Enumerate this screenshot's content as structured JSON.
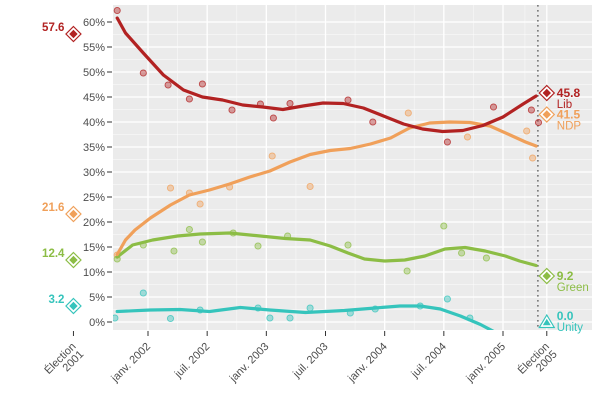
{
  "chart_data": {
    "type": "scatter",
    "subtype": "poll-tracker with smoothed trend lines",
    "title": "",
    "xlabel": "",
    "ylabel": "",
    "y_axis": {
      "min": 0,
      "max": 60,
      "step": 5,
      "unit": "%",
      "tick_labels": [
        "0%",
        "5%",
        "10%",
        "15%",
        "20%",
        "25%",
        "30%",
        "35%",
        "40%",
        "45%",
        "50%",
        "55%",
        "60%"
      ]
    },
    "x_ticks": [
      {
        "t": 2001.37,
        "label": "Élection\n2001"
      },
      {
        "t": 2002.0,
        "label": "janv. 2002"
      },
      {
        "t": 2002.5,
        "label": "juil. 2002"
      },
      {
        "t": 2003.0,
        "label": "janv. 2003"
      },
      {
        "t": 2003.5,
        "label": "juil. 2003"
      },
      {
        "t": 2004.0,
        "label": "janv. 2004"
      },
      {
        "t": 2004.5,
        "label": "juil. 2004"
      },
      {
        "t": 2005.0,
        "label": "janv. 2005"
      },
      {
        "t": 2005.37,
        "label": "Élection\n2005"
      }
    ],
    "dotted_line_t": 2005.295,
    "election_2001_t": 2001.37,
    "election_2005_t": 2005.37,
    "panel_bg": "#EBEBEB",
    "grid_color": "#FFFFFF",
    "axis_text_color": "#4D4D4D",
    "dotted_line_color": "#595959",
    "series": [
      {
        "name": "Lib",
        "color": "#B22222",
        "e2001": {
          "value": 57.6,
          "label": "57.6"
        },
        "e2005": {
          "value": 45.8,
          "label": "45.8"
        },
        "marker_2005": "diamond",
        "polls": [
          [
            2001.74,
            62.3
          ],
          [
            2001.96,
            49.8
          ],
          [
            2002.17,
            47.4
          ],
          [
            2002.35,
            44.6
          ],
          [
            2002.46,
            47.6
          ],
          [
            2002.71,
            42.4
          ],
          [
            2002.95,
            43.6
          ],
          [
            2003.06,
            40.8
          ],
          [
            2003.2,
            43.7
          ],
          [
            2003.69,
            44.4
          ],
          [
            2003.9,
            40.0
          ],
          [
            2004.53,
            36.0
          ],
          [
            2004.92,
            43.0
          ],
          [
            2005.24,
            42.4
          ],
          [
            2005.3,
            39.9
          ]
        ],
        "trend": [
          [
            2001.74,
            60.8
          ],
          [
            2001.81,
            57.8
          ],
          [
            2001.96,
            53.8
          ],
          [
            2002.13,
            49.4
          ],
          [
            2002.3,
            46.4
          ],
          [
            2002.46,
            45.0
          ],
          [
            2002.63,
            44.4
          ],
          [
            2002.8,
            43.4
          ],
          [
            2002.97,
            43.0
          ],
          [
            2003.14,
            42.5
          ],
          [
            2003.31,
            43.2
          ],
          [
            2003.48,
            43.8
          ],
          [
            2003.65,
            43.7
          ],
          [
            2003.82,
            42.8
          ],
          [
            2003.99,
            41.2
          ],
          [
            2004.16,
            39.6
          ],
          [
            2004.32,
            38.6
          ],
          [
            2004.49,
            38.1
          ],
          [
            2004.66,
            38.3
          ],
          [
            2004.83,
            39.3
          ],
          [
            2005.0,
            41.0
          ],
          [
            2005.17,
            43.6
          ],
          [
            2005.28,
            45.2
          ]
        ]
      },
      {
        "name": "NDP",
        "color": "#F0A05A",
        "e2001": {
          "value": 21.6,
          "label": "21.6"
        },
        "e2005": {
          "value": 41.5,
          "label": "41.5"
        },
        "marker_2005": "diamond",
        "polls": [
          [
            2001.74,
            13.4
          ],
          [
            2002.19,
            26.8
          ],
          [
            2002.35,
            25.8
          ],
          [
            2002.44,
            23.6
          ],
          [
            2002.69,
            27.0
          ],
          [
            2003.05,
            33.2
          ],
          [
            2003.37,
            27.1
          ],
          [
            2004.2,
            41.8
          ],
          [
            2004.7,
            37.0
          ],
          [
            2005.2,
            38.2
          ],
          [
            2005.25,
            32.8
          ]
        ],
        "trend": [
          [
            2001.74,
            13.5
          ],
          [
            2001.81,
            16.4
          ],
          [
            2001.89,
            18.4
          ],
          [
            2002.02,
            20.8
          ],
          [
            2002.19,
            23.4
          ],
          [
            2002.35,
            25.4
          ],
          [
            2002.52,
            26.4
          ],
          [
            2002.69,
            27.6
          ],
          [
            2002.86,
            29.0
          ],
          [
            2003.03,
            30.2
          ],
          [
            2003.2,
            32.0
          ],
          [
            2003.37,
            33.5
          ],
          [
            2003.54,
            34.3
          ],
          [
            2003.71,
            34.7
          ],
          [
            2003.88,
            35.6
          ],
          [
            2004.05,
            36.8
          ],
          [
            2004.21,
            38.8
          ],
          [
            2004.38,
            39.8
          ],
          [
            2004.55,
            40.0
          ],
          [
            2004.72,
            39.9
          ],
          [
            2004.89,
            39.2
          ],
          [
            2005.06,
            37.4
          ],
          [
            2005.19,
            36.0
          ],
          [
            2005.28,
            35.2
          ]
        ]
      },
      {
        "name": "Green",
        "color": "#8CBD45",
        "e2001": {
          "value": 12.4,
          "label": "12.4"
        },
        "e2005": {
          "value": 9.2,
          "label": "9.2"
        },
        "marker_2005": "diamond",
        "polls": [
          [
            2001.74,
            12.6
          ],
          [
            2001.96,
            15.4
          ],
          [
            2002.22,
            14.2
          ],
          [
            2002.35,
            18.5
          ],
          [
            2002.46,
            16.0
          ],
          [
            2002.72,
            17.8
          ],
          [
            2002.93,
            15.2
          ],
          [
            2003.18,
            17.2
          ],
          [
            2003.69,
            15.4
          ],
          [
            2004.19,
            10.2
          ],
          [
            2004.5,
            19.2
          ],
          [
            2004.65,
            13.8
          ],
          [
            2004.86,
            12.8
          ]
        ],
        "trend": [
          [
            2001.74,
            13.0
          ],
          [
            2001.87,
            15.4
          ],
          [
            2002.04,
            16.4
          ],
          [
            2002.25,
            17.2
          ],
          [
            2002.44,
            17.6
          ],
          [
            2002.69,
            17.8
          ],
          [
            2002.95,
            17.2
          ],
          [
            2003.16,
            16.7
          ],
          [
            2003.37,
            16.4
          ],
          [
            2003.54,
            15.2
          ],
          [
            2003.69,
            13.8
          ],
          [
            2003.83,
            12.6
          ],
          [
            2004.0,
            12.2
          ],
          [
            2004.17,
            12.4
          ],
          [
            2004.34,
            13.2
          ],
          [
            2004.51,
            14.6
          ],
          [
            2004.68,
            14.9
          ],
          [
            2004.85,
            14.2
          ],
          [
            2005.02,
            13.2
          ],
          [
            2005.14,
            12.2
          ],
          [
            2005.28,
            11.3
          ]
        ]
      },
      {
        "name": "Unity",
        "color": "#35C4BC",
        "e2001": {
          "value": 3.2,
          "label": "3.2"
        },
        "e2005": {
          "value": 0.0,
          "label": "0.0"
        },
        "marker_2005": "triangle",
        "polls": [
          [
            2001.72,
            0.8
          ],
          [
            2001.96,
            5.8
          ],
          [
            2002.19,
            0.7
          ],
          [
            2002.44,
            2.4
          ],
          [
            2002.93,
            2.8
          ],
          [
            2003.03,
            0.8
          ],
          [
            2003.2,
            0.8
          ],
          [
            2003.37,
            2.8
          ],
          [
            2003.71,
            1.8
          ],
          [
            2003.92,
            2.6
          ],
          [
            2004.3,
            3.2
          ],
          [
            2004.53,
            4.6
          ],
          [
            2004.72,
            0.8
          ]
        ],
        "trend": [
          [
            2001.74,
            2.1
          ],
          [
            2002.02,
            2.4
          ],
          [
            2002.27,
            2.5
          ],
          [
            2002.52,
            2.1
          ],
          [
            2002.78,
            2.9
          ],
          [
            2003.03,
            2.4
          ],
          [
            2003.33,
            1.9
          ],
          [
            2003.66,
            2.3
          ],
          [
            2003.92,
            2.8
          ],
          [
            2004.13,
            3.2
          ],
          [
            2004.3,
            3.2
          ],
          [
            2004.47,
            2.6
          ],
          [
            2004.64,
            1.2
          ],
          [
            2004.81,
            -0.5
          ],
          [
            2004.93,
            -2.0
          ]
        ]
      }
    ]
  }
}
